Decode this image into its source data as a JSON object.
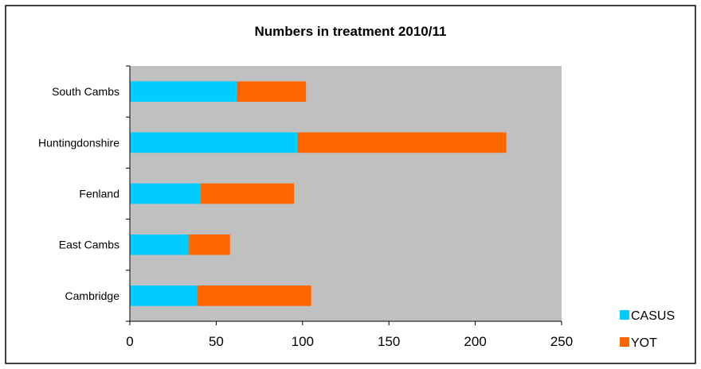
{
  "chart_data": {
    "type": "bar",
    "orientation": "horizontal",
    "stacked": true,
    "title": "Numbers in treatment 2010/11",
    "xlabel": "",
    "ylabel": "",
    "categories": [
      "South Cambs",
      "Huntingdonshire",
      "Fenland",
      "East Cambs",
      "Cambridge"
    ],
    "series": [
      {
        "name": "CASUS",
        "color": "#00ccff",
        "values": [
          62,
          97,
          41,
          34,
          39
        ]
      },
      {
        "name": "YOT",
        "color": "#ff6600",
        "values": [
          40,
          121,
          54,
          24,
          66
        ]
      }
    ],
    "xlim": [
      0,
      250
    ],
    "xticks": [
      "0",
      "50",
      "100",
      "150",
      "200",
      "250"
    ],
    "grid": false,
    "plot_background": "#c0c0c0",
    "legend_position": "bottom-right"
  }
}
